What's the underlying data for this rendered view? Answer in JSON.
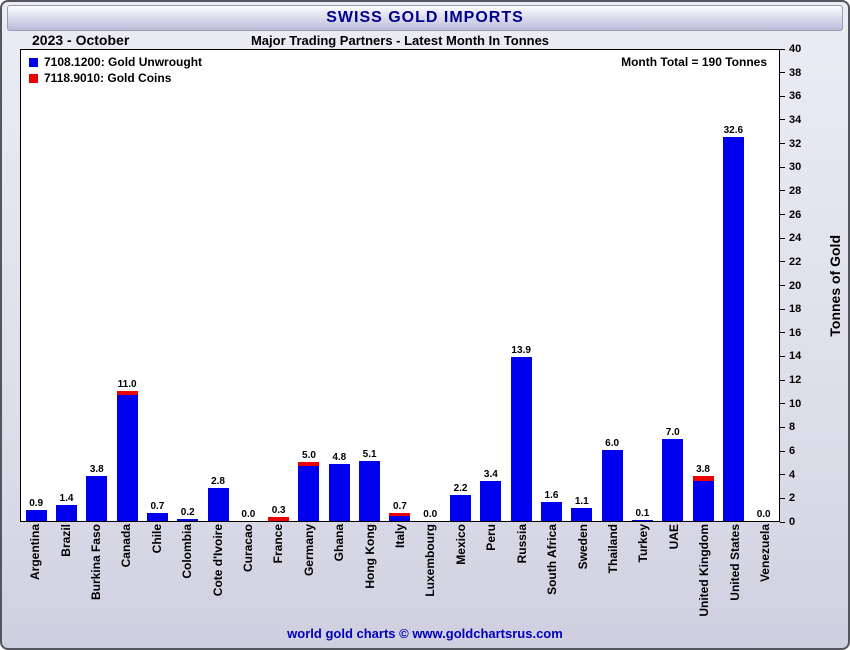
{
  "chart_data": {
    "type": "bar",
    "title": "SWISS GOLD IMPORTS",
    "period_label": "2023 - October",
    "subtitle": "Major Trading Partners - Latest Month In Tonnes",
    "annotation": "Month Total = 190 Tonnes",
    "ylabel": "Tonnes of Gold",
    "ylim": [
      0,
      40
    ],
    "ytick_step": 2,
    "grid": false,
    "legend_position": "top-left",
    "legend": [
      {
        "key": "unwrought",
        "label": "7108.1200: Gold Unwrought",
        "color": "#0000ee"
      },
      {
        "key": "coins",
        "label": "7118.9010: Gold Coins",
        "color": "#ee0000"
      }
    ],
    "categories": [
      "Argentina",
      "Brazil",
      "Burkina Faso",
      "Canada",
      "Chile",
      "Colombia",
      "Cote d'Ivoire",
      "Curacao",
      "France",
      "Germany",
      "Ghana",
      "Hong Kong",
      "Italy",
      "Luxembourg",
      "Mexico",
      "Peru",
      "Russia",
      "South Africa",
      "Sweden",
      "Thailand",
      "Turkey",
      "UAE",
      "United Kingdom",
      "United States",
      "Venezuela"
    ],
    "totals": [
      0.9,
      1.4,
      3.8,
      11.0,
      0.7,
      0.2,
      2.8,
      0.0,
      0.3,
      5.0,
      4.8,
      5.1,
      0.7,
      0.0,
      2.2,
      3.4,
      13.9,
      1.6,
      1.1,
      6.0,
      0.1,
      7.0,
      3.8,
      32.6,
      0.0
    ],
    "coins": [
      0,
      0,
      0,
      0.3,
      0,
      0,
      0,
      0,
      0.3,
      0.3,
      0,
      0,
      0.3,
      0,
      0,
      0,
      0,
      0,
      0,
      0,
      0,
      0,
      0.4,
      0,
      0
    ],
    "footer": "world gold charts © www.goldchartsrus.com"
  }
}
